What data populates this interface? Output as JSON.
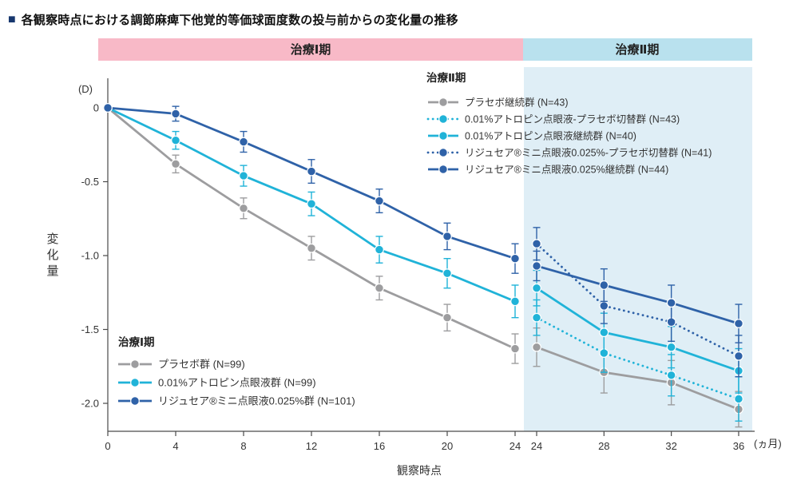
{
  "title": {
    "bullet": "■",
    "text": "各観察時点における調節麻痺下他覚的等価球面度数の投与前からの変化量の推移"
  },
  "bands": {
    "period1": "治療Ⅰ期",
    "period2": "治療Ⅱ期"
  },
  "axes": {
    "y_unit": "(D)",
    "y_label": "変化量",
    "x_label": "観察時点",
    "x_unit": "(ヵ月)",
    "y_ticks": [
      {
        "label": "0",
        "value": 0
      },
      {
        "label": "-0.5",
        "value": -0.5
      },
      {
        "label": "-1.0",
        "value": -1.0
      },
      {
        "label": "-1.5",
        "value": -1.5
      },
      {
        "label": "-2.0",
        "value": -2.0
      }
    ],
    "x_ticks": [
      {
        "label": "0",
        "month": 0,
        "period": 1
      },
      {
        "label": "4",
        "month": 4,
        "period": 1
      },
      {
        "label": "8",
        "month": 8,
        "period": 1
      },
      {
        "label": "12",
        "month": 12,
        "period": 1
      },
      {
        "label": "16",
        "month": 16,
        "period": 1
      },
      {
        "label": "20",
        "month": 20,
        "period": 1
      },
      {
        "label": "24",
        "month": 24,
        "period": 1
      },
      {
        "label": "24",
        "month": 24,
        "period": 2
      },
      {
        "label": "28",
        "month": 28,
        "period": 2
      },
      {
        "label": "32",
        "month": 32,
        "period": 2
      },
      {
        "label": "36",
        "month": 36,
        "period": 2
      }
    ]
  },
  "legend_p1": {
    "title": "治療Ⅰ期"
  },
  "legend_p2": {
    "title": "治療Ⅱ期"
  },
  "colors": {
    "navy": "#17376e",
    "gray": "#9d9d9f",
    "cyan": "#20b3d8",
    "blue": "#2f62a8",
    "band_pink": "#f8b9c7",
    "band_blue": "#b9e1ee",
    "shade": "#dfeef6"
  },
  "chart_data": {
    "type": "line",
    "title": "各観察時点における調節麻痺下他覚的等価球面度数の投与前からの変化量の推移",
    "xlabel": "観察時点 (ヵ月)",
    "ylabel": "変化量 (D)",
    "ylim": [
      -2.2,
      0.1
    ],
    "legend_position": "period1: bottom-left inside plot, period2: top-right inside plot",
    "grid": false,
    "series": [
      {
        "name": "プラセボ群 (N=99)",
        "period": 1,
        "color": "#9d9d9f",
        "style": "solid",
        "x": [
          0,
          4,
          8,
          12,
          16,
          20,
          24
        ],
        "y": [
          0,
          -0.38,
          -0.68,
          -0.95,
          -1.22,
          -1.42,
          -1.63
        ],
        "err": [
          0,
          0.06,
          0.07,
          0.08,
          0.08,
          0.09,
          0.1
        ]
      },
      {
        "name": "0.01%アトロピン点眼液群 (N=99)",
        "period": 1,
        "color": "#20b3d8",
        "style": "solid",
        "x": [
          0,
          4,
          8,
          12,
          16,
          20,
          24
        ],
        "y": [
          0,
          -0.22,
          -0.46,
          -0.65,
          -0.96,
          -1.12,
          -1.31
        ],
        "err": [
          0,
          0.06,
          0.07,
          0.08,
          0.09,
          0.1,
          0.11
        ]
      },
      {
        "name": "リジュセア®ミニ点眼液0.025%群 (N=101)",
        "period": 1,
        "color": "#2f62a8",
        "style": "solid",
        "x": [
          0,
          4,
          8,
          12,
          16,
          20,
          24
        ],
        "y": [
          0,
          -0.04,
          -0.23,
          -0.43,
          -0.63,
          -0.87,
          -1.02
        ],
        "err": [
          0,
          0.05,
          0.07,
          0.08,
          0.08,
          0.09,
          0.1
        ]
      },
      {
        "name": "プラセボ継続群 (N=43)",
        "period": 2,
        "color": "#9d9d9f",
        "style": "solid",
        "x": [
          24,
          28,
          32,
          36
        ],
        "y": [
          -1.62,
          -1.79,
          -1.86,
          -2.04
        ],
        "err": [
          0.13,
          0.14,
          0.15,
          0.12
        ]
      },
      {
        "name": "0.01%アトロピン点眼液-プラセボ切替群 (N=43)",
        "period": 2,
        "color": "#20b3d8",
        "style": "dotted",
        "x": [
          24,
          28,
          32,
          36
        ],
        "y": [
          -1.42,
          -1.66,
          -1.81,
          -1.97
        ],
        "err": [
          0.12,
          0.13,
          0.14,
          0.15
        ]
      },
      {
        "name": "0.01%アトロピン点眼液継続群 (N=40)",
        "period": 2,
        "color": "#20b3d8",
        "style": "solid",
        "x": [
          24,
          28,
          32,
          36
        ],
        "y": [
          -1.22,
          -1.52,
          -1.62,
          -1.78
        ],
        "err": [
          0.12,
          0.13,
          0.14,
          0.15
        ]
      },
      {
        "name": "リジュセア®ミニ点眼液0.025%-プラセボ切替群 (N=41)",
        "period": 2,
        "color": "#2f62a8",
        "style": "dotted",
        "x": [
          24,
          28,
          32,
          36
        ],
        "y": [
          -0.92,
          -1.34,
          -1.45,
          -1.68
        ],
        "err": [
          0.11,
          0.12,
          0.13,
          0.14
        ]
      },
      {
        "name": "リジュセア®ミニ点眼液0.025%継続群 (N=44)",
        "period": 2,
        "color": "#2f62a8",
        "style": "solid",
        "x": [
          24,
          28,
          32,
          36
        ],
        "y": [
          -1.07,
          -1.2,
          -1.32,
          -1.46
        ],
        "err": [
          0.1,
          0.11,
          0.12,
          0.13
        ]
      }
    ]
  }
}
